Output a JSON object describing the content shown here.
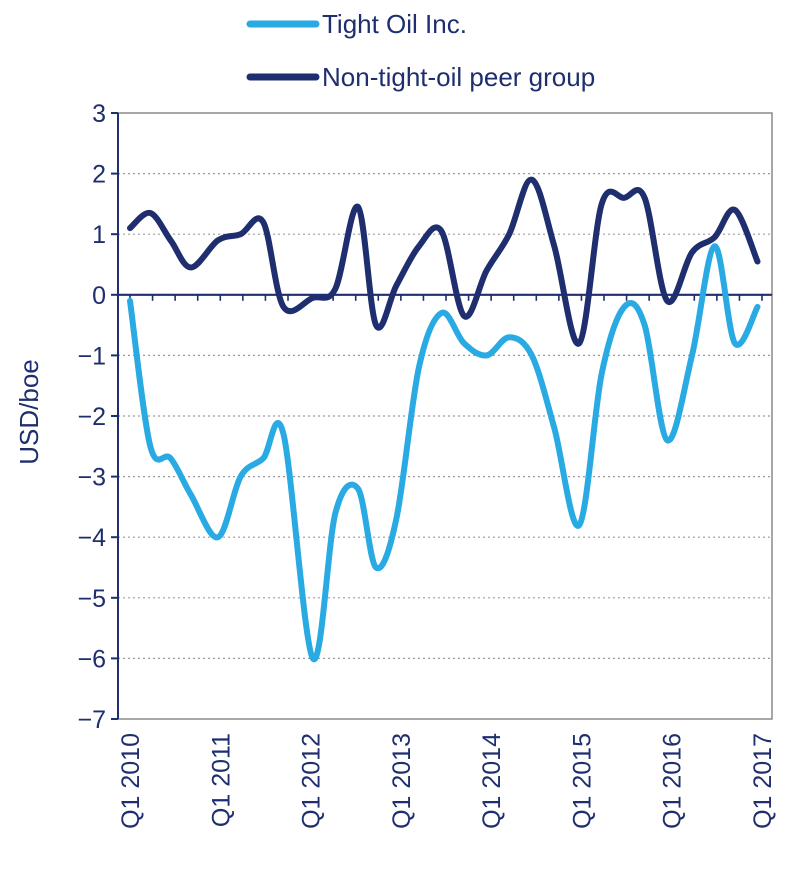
{
  "chart_data": {
    "type": "line",
    "title": "",
    "xlabel": "",
    "ylabel": "USD/boe",
    "ylim": [
      -7,
      3
    ],
    "yticks": [
      "3",
      "2",
      "1",
      "0",
      "−1",
      "−2",
      "−3",
      "−4",
      "−5",
      "−6",
      "−7"
    ],
    "ytick_values": [
      3,
      2,
      1,
      0,
      -1,
      -2,
      -3,
      -4,
      -5,
      -6,
      -7
    ],
    "grid": true,
    "legend_position": "top",
    "xticks": [
      "Q1 2010",
      "Q1 2011",
      "Q1 2012",
      "Q1 2013",
      "Q1 2014",
      "Q1 2015",
      "Q1 2016",
      "Q1 2017"
    ],
    "xtick_quarters": [
      0,
      4,
      8,
      12,
      16,
      20,
      24,
      28
    ],
    "x_quarter_range": [
      0,
      28
    ],
    "series": [
      {
        "name": "Tight Oil Inc.",
        "color": "#29aae2",
        "x": [
          0,
          0.9,
          1.8,
          2.7,
          3.9,
          4.9,
          5.9,
          6.8,
          8.1,
          9.1,
          10.1,
          10.9,
          11.8,
          12.8,
          13.8,
          14.8,
          15.8,
          16.8,
          17.8,
          18.8,
          19.9,
          20.9,
          21.9,
          22.8,
          23.8,
          24.9,
          25.9,
          26.8,
          27.8
        ],
        "values": [
          -0.1,
          -2.5,
          -2.7,
          -3.3,
          -4.0,
          -3.0,
          -2.7,
          -2.3,
          -6.0,
          -3.6,
          -3.2,
          -4.5,
          -3.7,
          -1.2,
          -0.3,
          -0.8,
          -1.0,
          -0.7,
          -1.0,
          -2.2,
          -3.8,
          -1.3,
          -0.2,
          -0.5,
          -2.4,
          -1.0,
          0.8,
          -0.8,
          -0.2
        ]
      },
      {
        "name": "Non-tight-oil peer group",
        "color": "#1e2e6e",
        "x": [
          0,
          0.9,
          1.8,
          2.7,
          3.9,
          4.9,
          5.9,
          6.8,
          8.1,
          9.1,
          10.1,
          10.9,
          11.8,
          12.8,
          13.8,
          14.8,
          15.8,
          16.8,
          17.8,
          18.8,
          19.9,
          20.9,
          21.9,
          22.8,
          23.8,
          24.9,
          25.9,
          26.8,
          27.8
        ],
        "values": [
          1.1,
          1.35,
          0.9,
          0.45,
          0.9,
          1.0,
          1.2,
          -0.2,
          -0.05,
          0.1,
          1.45,
          -0.5,
          0.15,
          0.8,
          1.05,
          -0.35,
          0.4,
          1.0,
          1.9,
          0.8,
          -0.8,
          1.5,
          1.6,
          1.6,
          -0.1,
          0.7,
          0.95,
          1.4,
          0.55
        ]
      }
    ]
  }
}
